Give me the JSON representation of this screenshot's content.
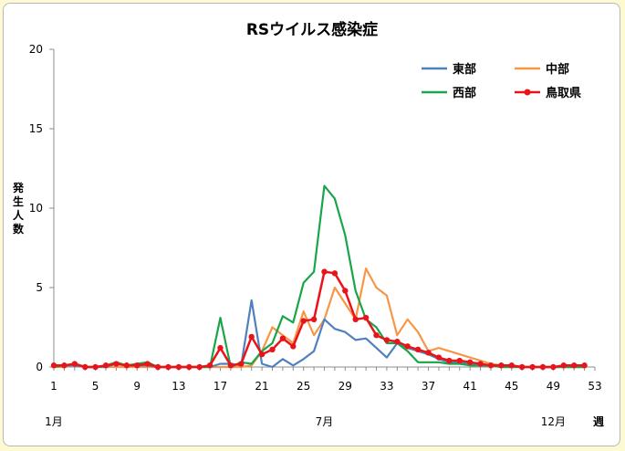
{
  "chart_data": {
    "type": "line",
    "title": "RSウイルス感染症",
    "ylabel_chars": [
      "発",
      "生",
      "人",
      "数"
    ],
    "xlabel": "週",
    "ylim": [
      0,
      20
    ],
    "yticks": [
      0,
      5,
      10,
      15,
      20
    ],
    "xlim": [
      1,
      53
    ],
    "xticks": [
      1,
      5,
      9,
      13,
      17,
      21,
      25,
      29,
      33,
      37,
      41,
      45,
      49,
      53
    ],
    "month_labels": [
      {
        "week": 1,
        "label": "1月"
      },
      {
        "week": 27,
        "label": "7月"
      },
      {
        "week": 49,
        "label": "12月"
      }
    ],
    "legend_position": "top-right",
    "series": [
      {
        "name": "東部",
        "color": "#4f81bd",
        "markers": false,
        "values": [
          0.1,
          0.1,
          0.1,
          0,
          0,
          0,
          0.2,
          0.1,
          0.1,
          0.1,
          0,
          0,
          0,
          0,
          0,
          0,
          0.2,
          0.2,
          0.1,
          4.2,
          0.2,
          0,
          0.5,
          0.1,
          0.5,
          1,
          3,
          2.4,
          2.2,
          1.7,
          1.8,
          1.2,
          0.6,
          1.5,
          1.2,
          1,
          0.8,
          0.5,
          0.3,
          0.3,
          0.2,
          0.1,
          0.1,
          0,
          0,
          0,
          0,
          0,
          0,
          0,
          0,
          0
        ]
      },
      {
        "name": "中部",
        "color": "#f79646",
        "markers": false,
        "values": [
          0,
          0,
          0.2,
          0,
          0,
          0,
          0,
          0,
          0,
          0,
          0,
          0,
          0,
          0,
          0,
          0,
          0,
          0,
          0,
          0.1,
          1,
          2.5,
          2,
          1.5,
          3.5,
          2,
          3,
          5,
          4,
          3,
          6.2,
          5,
          4.5,
          2,
          3,
          2.2,
          1,
          1.2,
          1,
          0.8,
          0.6,
          0.4,
          0.2,
          0.1,
          0.1,
          0,
          0,
          0,
          0,
          0,
          0,
          0
        ]
      },
      {
        "name": "西部",
        "color": "#1aa54a",
        "markers": false,
        "values": [
          0,
          0.1,
          0.2,
          0,
          0,
          0.1,
          0.3,
          0.1,
          0.2,
          0.3,
          0,
          0,
          0,
          0,
          0,
          0,
          3.1,
          0,
          0.3,
          0.2,
          1,
          1.5,
          3.2,
          2.8,
          5.3,
          6,
          11.4,
          10.6,
          8.3,
          4.8,
          3,
          2.5,
          1.5,
          1.5,
          1,
          0.3,
          0.3,
          0.3,
          0.2,
          0.2,
          0.1,
          0.1,
          0.1,
          0,
          0,
          0,
          0,
          0,
          0,
          0,
          0,
          0
        ]
      },
      {
        "name": "鳥取県",
        "color": "#e8141a",
        "markers": true,
        "values": [
          0.1,
          0.1,
          0.2,
          0,
          0,
          0.1,
          0.2,
          0.1,
          0.1,
          0.2,
          0,
          0,
          0,
          0,
          0,
          0.1,
          1.2,
          0.1,
          0.2,
          1.9,
          0.8,
          1.1,
          1.8,
          1.3,
          2.9,
          3,
          6,
          5.9,
          4.8,
          3,
          3.1,
          2,
          1.7,
          1.6,
          1.3,
          1.1,
          0.9,
          0.6,
          0.4,
          0.4,
          0.3,
          0.2,
          0.1,
          0.1,
          0.1,
          0,
          0,
          0,
          0,
          0.1,
          0.1,
          0.1
        ]
      }
    ]
  }
}
